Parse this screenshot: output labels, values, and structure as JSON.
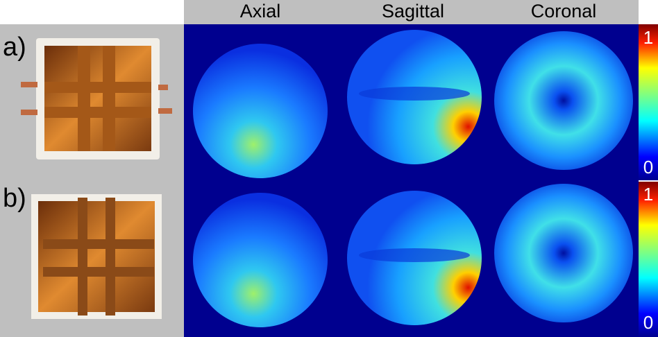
{
  "columns": [
    "Axial",
    "Sagittal",
    "Coronal"
  ],
  "rows": [
    {
      "label": "a)"
    },
    {
      "label": "b)"
    }
  ],
  "colorbars": [
    {
      "max": 1,
      "min": 0
    },
    {
      "max": 1,
      "min": 0
    }
  ]
}
